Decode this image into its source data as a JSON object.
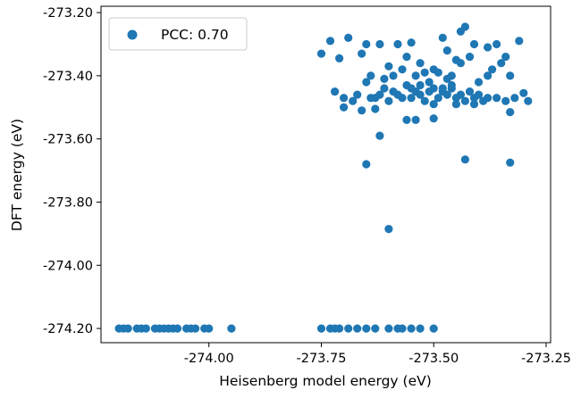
{
  "chart_data": {
    "type": "scatter",
    "xlabel": "Heisenberg model energy (eV)",
    "ylabel": "DFT energy (eV)",
    "xlim": [
      -274.24,
      -273.24
    ],
    "ylim": [
      -274.245,
      -273.18
    ],
    "x_ticks": [
      -274.0,
      -273.75,
      -273.5,
      -273.25
    ],
    "x_tick_labels": [
      "-274.00",
      "-273.75",
      "-273.50",
      "-273.25"
    ],
    "y_ticks": [
      -274.2,
      -274.0,
      -273.8,
      -273.6,
      -273.4,
      -273.2
    ],
    "y_tick_labels": [
      "-274.20",
      "-274.00",
      "-273.80",
      "-273.60",
      "-273.40",
      "-273.20"
    ],
    "grid": false,
    "legend_position": "upper-left",
    "series_color": "#1f77b4",
    "series": [
      {
        "name": "PCC: 0.70",
        "points": [
          [
            -274.2,
            -274.2
          ],
          [
            -274.19,
            -274.2
          ],
          [
            -274.18,
            -274.2
          ],
          [
            -274.16,
            -274.2
          ],
          [
            -274.15,
            -274.2
          ],
          [
            -274.14,
            -274.2
          ],
          [
            -274.12,
            -274.2
          ],
          [
            -274.11,
            -274.2
          ],
          [
            -274.1,
            -274.2
          ],
          [
            -274.09,
            -274.2
          ],
          [
            -274.08,
            -274.2
          ],
          [
            -274.07,
            -274.2
          ],
          [
            -274.05,
            -274.2
          ],
          [
            -274.04,
            -274.2
          ],
          [
            -274.03,
            -274.2
          ],
          [
            -274.01,
            -274.2
          ],
          [
            -274.0,
            -274.2
          ],
          [
            -273.95,
            -274.2
          ],
          [
            -273.75,
            -274.2
          ],
          [
            -273.73,
            -274.2
          ],
          [
            -273.72,
            -274.2
          ],
          [
            -273.71,
            -274.2
          ],
          [
            -273.69,
            -274.2
          ],
          [
            -273.67,
            -274.2
          ],
          [
            -273.65,
            -274.2
          ],
          [
            -273.63,
            -274.2
          ],
          [
            -273.6,
            -274.2
          ],
          [
            -273.58,
            -274.2
          ],
          [
            -273.57,
            -274.2
          ],
          [
            -273.55,
            -274.2
          ],
          [
            -273.53,
            -274.2
          ],
          [
            -273.5,
            -274.2
          ],
          [
            -273.6,
            -273.885
          ],
          [
            -273.65,
            -273.68
          ],
          [
            -273.43,
            -273.665
          ],
          [
            -273.33,
            -273.675
          ],
          [
            -273.62,
            -273.59
          ],
          [
            -273.56,
            -273.54
          ],
          [
            -273.54,
            -273.54
          ],
          [
            -273.5,
            -273.535
          ],
          [
            -273.33,
            -273.515
          ],
          [
            -273.66,
            -273.51
          ],
          [
            -273.7,
            -273.5
          ],
          [
            -273.63,
            -273.505
          ],
          [
            -273.75,
            -273.33
          ],
          [
            -273.73,
            -273.29
          ],
          [
            -273.71,
            -273.345
          ],
          [
            -273.69,
            -273.28
          ],
          [
            -273.66,
            -273.33
          ],
          [
            -273.65,
            -273.3
          ],
          [
            -273.62,
            -273.3
          ],
          [
            -273.6,
            -273.37
          ],
          [
            -273.58,
            -273.3
          ],
          [
            -273.56,
            -273.34
          ],
          [
            -273.55,
            -273.295
          ],
          [
            -273.53,
            -273.36
          ],
          [
            -273.5,
            -273.38
          ],
          [
            -273.48,
            -273.28
          ],
          [
            -273.47,
            -273.32
          ],
          [
            -273.44,
            -273.26
          ],
          [
            -273.43,
            -273.245
          ],
          [
            -273.41,
            -273.3
          ],
          [
            -273.38,
            -273.31
          ],
          [
            -273.36,
            -273.3
          ],
          [
            -273.34,
            -273.34
          ],
          [
            -273.31,
            -273.29
          ],
          [
            -273.72,
            -273.45
          ],
          [
            -273.7,
            -273.47
          ],
          [
            -273.68,
            -273.48
          ],
          [
            -273.67,
            -273.46
          ],
          [
            -273.65,
            -273.42
          ],
          [
            -273.64,
            -273.47
          ],
          [
            -273.63,
            -273.47
          ],
          [
            -273.62,
            -273.46
          ],
          [
            -273.61,
            -273.44
          ],
          [
            -273.6,
            -273.48
          ],
          [
            -273.59,
            -273.45
          ],
          [
            -273.58,
            -273.46
          ],
          [
            -273.57,
            -273.47
          ],
          [
            -273.56,
            -273.43
          ],
          [
            -273.55,
            -273.47
          ],
          [
            -273.54,
            -273.45
          ],
          [
            -273.53,
            -273.46
          ],
          [
            -273.52,
            -273.48
          ],
          [
            -273.51,
            -273.45
          ],
          [
            -273.5,
            -273.44
          ],
          [
            -273.49,
            -273.47
          ],
          [
            -273.48,
            -273.45
          ],
          [
            -273.47,
            -273.46
          ],
          [
            -273.46,
            -273.44
          ],
          [
            -273.45,
            -273.47
          ],
          [
            -273.44,
            -273.46
          ],
          [
            -273.43,
            -273.48
          ],
          [
            -273.42,
            -273.45
          ],
          [
            -273.41,
            -273.47
          ],
          [
            -273.4,
            -273.46
          ],
          [
            -273.39,
            -273.48
          ],
          [
            -273.38,
            -273.47
          ],
          [
            -273.36,
            -273.47
          ],
          [
            -273.34,
            -273.48
          ],
          [
            -273.32,
            -273.47
          ],
          [
            -273.3,
            -273.455
          ],
          [
            -273.29,
            -273.48
          ],
          [
            -273.61,
            -273.41
          ],
          [
            -273.59,
            -273.4
          ],
          [
            -273.57,
            -273.38
          ],
          [
            -273.54,
            -273.4
          ],
          [
            -273.51,
            -273.42
          ],
          [
            -273.49,
            -273.39
          ],
          [
            -273.47,
            -273.41
          ],
          [
            -273.45,
            -273.35
          ],
          [
            -273.44,
            -273.36
          ],
          [
            -273.42,
            -273.34
          ],
          [
            -273.4,
            -273.42
          ],
          [
            -273.38,
            -273.4
          ],
          [
            -273.37,
            -273.38
          ],
          [
            -273.35,
            -273.36
          ],
          [
            -273.33,
            -273.4
          ],
          [
            -273.46,
            -273.43
          ],
          [
            -273.5,
            -273.49
          ],
          [
            -273.45,
            -273.49
          ],
          [
            -273.41,
            -273.49
          ],
          [
            -273.53,
            -273.43
          ],
          [
            -273.48,
            -273.44
          ],
          [
            -273.55,
            -273.44
          ],
          [
            -273.64,
            -273.4
          ],
          [
            -273.52,
            -273.39
          ],
          [
            -273.46,
            -273.4
          ]
        ]
      }
    ]
  }
}
